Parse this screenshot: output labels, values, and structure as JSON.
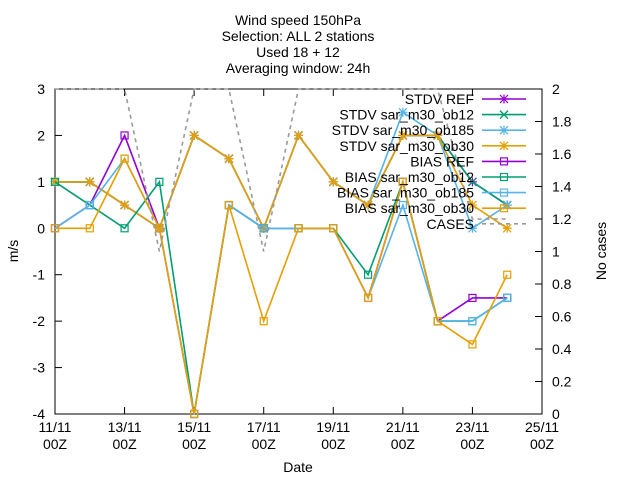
{
  "chart_data": {
    "type": "line",
    "title_lines": [
      "Wind speed 150hPa",
      "Selection: ALL      2 stations",
      "Used 18 + 12",
      "Averaging window: 24h"
    ],
    "xlabel": "Date",
    "ylabel": "m/s",
    "y2label": "No cases",
    "xlim": [
      0,
      14
    ],
    "ylim": [
      -4,
      3
    ],
    "y2lim": [
      0,
      2
    ],
    "x_ticks": [
      {
        "x": 0,
        "l1": "11/11",
        "l2": "00Z"
      },
      {
        "x": 2,
        "l1": "13/11",
        "l2": "00Z"
      },
      {
        "x": 4,
        "l1": "15/11",
        "l2": "00Z"
      },
      {
        "x": 6,
        "l1": "17/11",
        "l2": "00Z"
      },
      {
        "x": 8,
        "l1": "19/11",
        "l2": "00Z"
      },
      {
        "x": 10,
        "l1": "21/11",
        "l2": "00Z"
      },
      {
        "x": 12,
        "l1": "23/11",
        "l2": "00Z"
      },
      {
        "x": 14,
        "l1": "25/11",
        "l2": "00Z"
      }
    ],
    "y_ticks": [
      -4,
      -3,
      -2,
      -1,
      0,
      1,
      2,
      3
    ],
    "y2_ticks": [
      "0",
      "0.2",
      "0.4",
      "0.6",
      "0.8",
      "1",
      "1.2",
      "1.4",
      "1.6",
      "1.8",
      "2"
    ],
    "legend_position": "top-right",
    "grid": false,
    "series": [
      {
        "name": "STDV REF",
        "axis": "y",
        "color": "#9400d3",
        "marker": "star",
        "dash": false,
        "x": [
          0,
          1,
          2,
          3,
          4,
          5,
          6,
          7,
          8,
          9,
          10,
          11,
          12,
          13
        ],
        "y": [
          1,
          1,
          0.5,
          0,
          2,
          1.5,
          0,
          2,
          1,
          0.5,
          2,
          2,
          1,
          0.5
        ]
      },
      {
        "name": "STDV sar_m30_ob12",
        "axis": "y",
        "color": "#009e73",
        "marker": "x",
        "dash": false,
        "x": [
          0,
          1,
          2,
          3,
          4,
          5,
          6,
          7,
          8,
          9,
          10,
          11,
          12,
          13
        ],
        "y": [
          1,
          1,
          0.5,
          0,
          2,
          1.5,
          0,
          2,
          1,
          0.5,
          2,
          2,
          1,
          0.5
        ]
      },
      {
        "name": "STDV sar_m30_ob185",
        "axis": "y",
        "color": "#56b4e9",
        "marker": "star",
        "dash": false,
        "x": [
          0,
          1,
          2,
          3,
          4,
          5,
          6,
          7,
          8,
          9,
          10,
          11,
          12,
          13
        ],
        "y": [
          1,
          1,
          0.5,
          0,
          2,
          1.5,
          0,
          2,
          1,
          0.5,
          2.5,
          2,
          0,
          0.5
        ]
      },
      {
        "name": "STDV sar_m30_ob30",
        "axis": "y",
        "color": "#e69f00",
        "marker": "star",
        "dash": false,
        "x": [
          0,
          1,
          2,
          3,
          4,
          5,
          6,
          7,
          8,
          9,
          10,
          11,
          12,
          13
        ],
        "y": [
          1,
          1,
          0.5,
          0,
          2,
          1.5,
          0,
          2,
          1,
          0.5,
          2,
          2,
          0.5,
          0
        ]
      },
      {
        "name": "BIAS REF",
        "axis": "y",
        "color": "#9400d3",
        "marker": "square",
        "dash": false,
        "x": [
          0,
          1,
          2,
          3,
          4,
          5,
          6,
          7,
          8,
          9,
          10,
          11,
          12,
          13
        ],
        "y": [
          0,
          0.5,
          2,
          0,
          -4,
          0.5,
          0,
          0,
          0,
          -1.5,
          1,
          -2,
          -1.5,
          -1.5
        ]
      },
      {
        "name": "BIAS sar_m30_ob12",
        "axis": "y",
        "color": "#009e73",
        "marker": "square",
        "dash": false,
        "x": [
          0,
          1,
          2,
          3,
          4,
          5,
          6,
          7,
          8,
          9,
          10,
          11,
          12,
          13
        ],
        "y": [
          1,
          0.5,
          0,
          1,
          -4,
          0.5,
          0,
          0,
          0,
          -1,
          1,
          -2,
          -2,
          -1.5
        ]
      },
      {
        "name": "BIAS sar_m30_ob185",
        "axis": "y",
        "color": "#56b4e9",
        "marker": "square",
        "dash": false,
        "x": [
          0,
          1,
          2,
          3,
          4,
          5,
          6,
          7,
          8,
          9,
          10,
          11,
          12,
          13
        ],
        "y": [
          0,
          0.5,
          1.5,
          0,
          -4,
          0.5,
          0,
          0,
          0,
          -1.5,
          0.5,
          -2,
          -2,
          -1.5
        ]
      },
      {
        "name": "BIAS sar_m30_ob30",
        "axis": "y",
        "color": "#e69f00",
        "marker": "square",
        "dash": false,
        "x": [
          0,
          1,
          2,
          3,
          4,
          5,
          6,
          7,
          8,
          9,
          10,
          11,
          12,
          13
        ],
        "y": [
          0,
          0,
          1.5,
          0,
          -4,
          0.5,
          -2,
          0,
          0,
          -1.5,
          1,
          -2,
          -2.5,
          -1
        ]
      },
      {
        "name": "CASES",
        "axis": "y2",
        "color": "#999999",
        "marker": "none",
        "dash": true,
        "x": [
          0,
          1,
          2,
          3,
          4,
          5,
          6,
          7,
          8,
          9,
          10,
          11,
          12,
          13
        ],
        "y": [
          2,
          2,
          2,
          1,
          2,
          2,
          1,
          2,
          2,
          2,
          2,
          2,
          1.2,
          1.2
        ]
      }
    ]
  }
}
